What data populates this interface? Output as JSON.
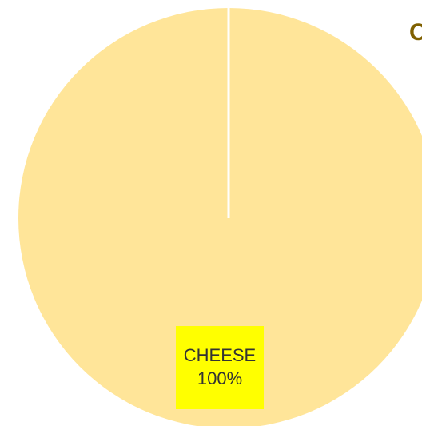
{
  "title_fragment": "C",
  "colors": {
    "cheese": "#FFE599",
    "label_background": "#FFFF00",
    "separator": "#FFFFFF",
    "title": "#7F6000"
  },
  "chart_data": {
    "type": "pie",
    "slices": [
      {
        "category": "CHEESE",
        "value": 100,
        "label": "100%"
      }
    ]
  }
}
